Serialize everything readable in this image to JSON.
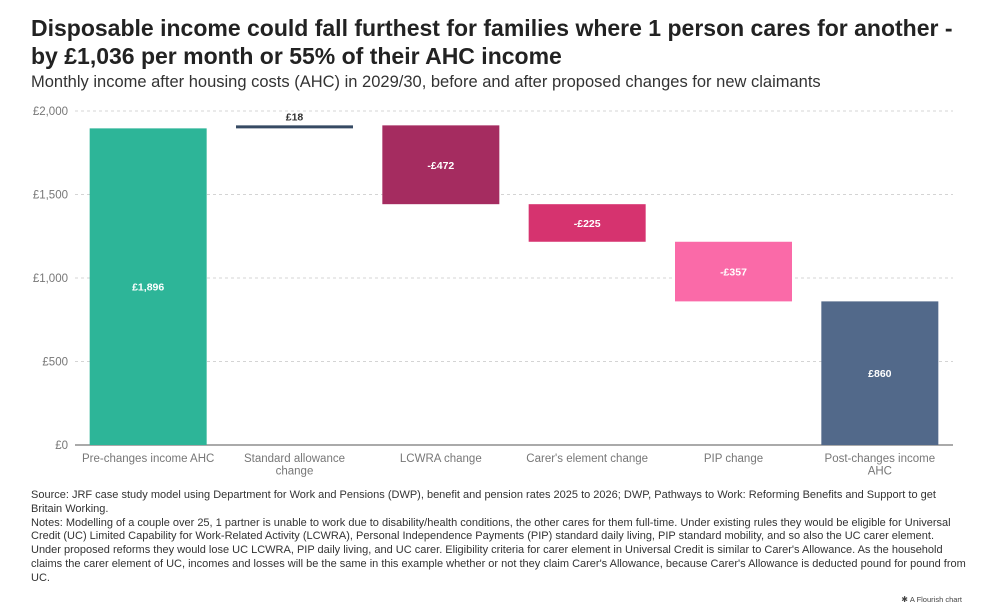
{
  "title": "Disposable income could fall furthest for families where 1 person cares for another - by £1,036 per month or 55% of their AHC income",
  "subtitle": "Monthly income after housing costs (AHC) in 2029/30, before and after proposed changes for new claimants",
  "chart_data": {
    "type": "waterfall",
    "ylim": [
      0,
      2000
    ],
    "yticks": [
      0,
      500,
      1000,
      1500,
      2000
    ],
    "ytick_labels": [
      "£0",
      "£500",
      "£1,000",
      "£1,500",
      "£2,000"
    ],
    "grid": true,
    "bars": [
      {
        "label": "Pre-changes income AHC",
        "label_lines": [
          "Pre-changes income AHC"
        ],
        "start": 0,
        "end": 1896,
        "value_label": "£1,896",
        "color": "#2db598",
        "kind": "total"
      },
      {
        "label": "Standard allowance change",
        "label_lines": [
          "Standard allowance",
          "change"
        ],
        "start": 1896,
        "end": 1914,
        "value_label": "£18",
        "color": "#364a63",
        "kind": "increase"
      },
      {
        "label": "LCWRA change",
        "label_lines": [
          "LCWRA change"
        ],
        "start": 1914,
        "end": 1442,
        "value_label": "-£472",
        "color": "#a52c60",
        "kind": "decrease"
      },
      {
        "label": "Carer's element change",
        "label_lines": [
          "Carer's element change"
        ],
        "start": 1442,
        "end": 1217,
        "value_label": "-£225",
        "color": "#d6336f",
        "kind": "decrease"
      },
      {
        "label": "PIP change",
        "label_lines": [
          "PIP change"
        ],
        "start": 1217,
        "end": 860,
        "value_label": "-£357",
        "color": "#fa6aa8",
        "kind": "decrease"
      },
      {
        "label": "Post-changes income AHC",
        "label_lines": [
          "Post-changes income",
          "AHC"
        ],
        "start": 0,
        "end": 860,
        "value_label": "£860",
        "color": "#52698a",
        "kind": "total"
      }
    ]
  },
  "source": "Source: JRF case study model using Department for Work and Pensions (DWP), benefit and pension rates 2025 to 2026; DWP, Pathways to Work: Reforming Benefits and Support to get Britain Working.",
  "notes": "Notes: Modelling of a couple over 25, 1 partner is unable to work due to disability/health conditions, the other cares for them full-time. Under existing rules they would be eligible for Universal Credit (UC) Limited Capability for Work-Related Activity (LCWRA), Personal Independence Payments (PIP) standard daily living, PIP standard mobility, and so also the UC carer element. Under proposed reforms they would lose UC LCWRA, PIP daily living, and UC carer. Eligibility criteria for carer element in Universal Credit is similar to Carer's Allowance. As the household claims the carer element of UC, incomes and losses will be the same in this example whether or not they claim Carer's Allowance, because Carer's Allowance is deducted pound for pound from UC.",
  "credit": "A Flourish chart"
}
